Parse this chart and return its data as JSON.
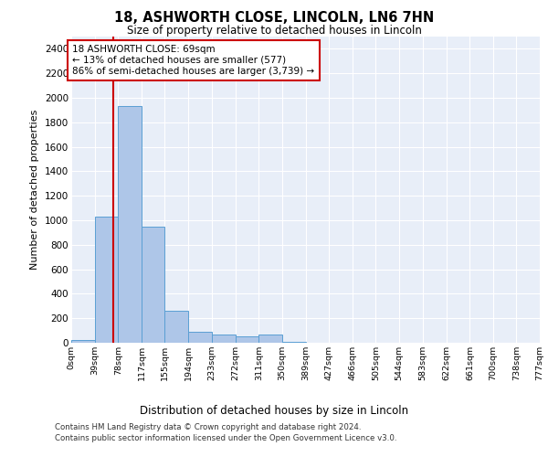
{
  "title": "18, ASHWORTH CLOSE, LINCOLN, LN6 7HN",
  "subtitle": "Size of property relative to detached houses in Lincoln",
  "xlabel": "Distribution of detached houses by size in Lincoln",
  "ylabel": "Number of detached properties",
  "footnote1": "Contains HM Land Registry data © Crown copyright and database right 2024.",
  "footnote2": "Contains public sector information licensed under the Open Government Licence v3.0.",
  "annotation_line1": "18 ASHWORTH CLOSE: 69sqm",
  "annotation_line2": "← 13% of detached houses are smaller (577)",
  "annotation_line3": "86% of semi-detached houses are larger (3,739) →",
  "property_size": 69,
  "bar_color": "#aec6e8",
  "bar_edge_color": "#5a9fd4",
  "red_line_color": "#cc0000",
  "annotation_box_color": "#cc0000",
  "background_color": "#ffffff",
  "plot_bg_color": "#e8eef8",
  "bins": [
    0,
    39,
    78,
    117,
    155,
    194,
    233,
    272,
    311,
    350,
    389,
    427,
    466,
    505,
    544,
    583,
    622,
    661,
    700,
    738,
    777
  ],
  "bin_labels": [
    "0sqm",
    "39sqm",
    "78sqm",
    "117sqm",
    "155sqm",
    "194sqm",
    "233sqm",
    "272sqm",
    "311sqm",
    "350sqm",
    "389sqm",
    "427sqm",
    "466sqm",
    "505sqm",
    "544sqm",
    "583sqm",
    "622sqm",
    "661sqm",
    "700sqm",
    "738sqm",
    "777sqm"
  ],
  "bar_heights": [
    20,
    1030,
    1930,
    950,
    260,
    90,
    65,
    50,
    70,
    10,
    0,
    0,
    0,
    0,
    0,
    0,
    0,
    0,
    0,
    0
  ],
  "ylim": [
    0,
    2500
  ],
  "yticks": [
    0,
    200,
    400,
    600,
    800,
    1000,
    1200,
    1400,
    1600,
    1800,
    2000,
    2200,
    2400
  ]
}
